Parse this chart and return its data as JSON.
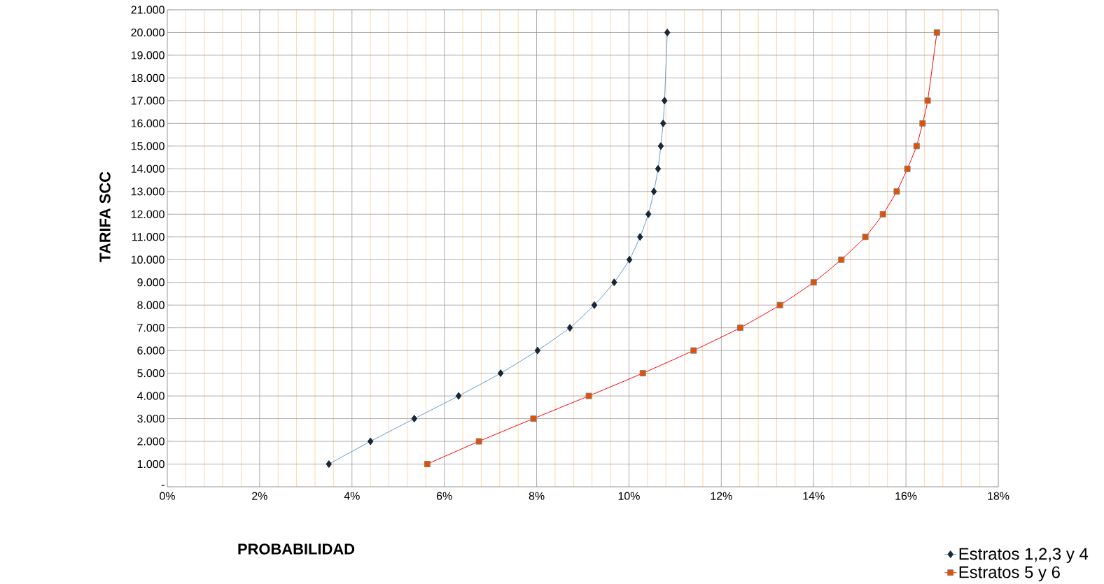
{
  "chart_data": {
    "type": "line",
    "xlabel": "PROBABILIDAD",
    "ylabel": "TARIFA  SCC",
    "xlim": [
      0,
      18
    ],
    "ylim": [
      0,
      21000
    ],
    "xticks": [
      {
        "value": 0,
        "label": "0%"
      },
      {
        "value": 0.4,
        "label": null
      },
      {
        "value": 0.8,
        "label": null
      },
      {
        "value": 1.2,
        "label": null
      },
      {
        "value": 1.6,
        "label": null
      },
      {
        "value": 2,
        "label": "2%"
      },
      {
        "value": 2.4,
        "label": null
      },
      {
        "value": 2.8,
        "label": null
      },
      {
        "value": 3.2,
        "label": null
      },
      {
        "value": 3.6,
        "label": null
      },
      {
        "value": 4,
        "label": "4%"
      },
      {
        "value": 4.4,
        "label": null
      },
      {
        "value": 4.8,
        "label": null
      },
      {
        "value": 5.2,
        "label": null
      },
      {
        "value": 5.6,
        "label": null
      },
      {
        "value": 6,
        "label": "6%"
      },
      {
        "value": 6.4,
        "label": null
      },
      {
        "value": 6.8,
        "label": null
      },
      {
        "value": 7.2,
        "label": null
      },
      {
        "value": 7.6,
        "label": null
      },
      {
        "value": 8,
        "label": "8%"
      },
      {
        "value": 8.4,
        "label": null
      },
      {
        "value": 8.8,
        "label": null
      },
      {
        "value": 9.2,
        "label": null
      },
      {
        "value": 9.6,
        "label": null
      },
      {
        "value": 10,
        "label": "10%"
      },
      {
        "value": 10.4,
        "label": null
      },
      {
        "value": 10.8,
        "label": null
      },
      {
        "value": 11.2,
        "label": null
      },
      {
        "value": 11.6,
        "label": null
      },
      {
        "value": 12,
        "label": "12%"
      },
      {
        "value": 12.4,
        "label": null
      },
      {
        "value": 12.8,
        "label": null
      },
      {
        "value": 13.2,
        "label": null
      },
      {
        "value": 13.6,
        "label": null
      },
      {
        "value": 14,
        "label": "14%"
      },
      {
        "value": 14.4,
        "label": null
      },
      {
        "value": 14.8,
        "label": null
      },
      {
        "value": 15.2,
        "label": null
      },
      {
        "value": 15.6,
        "label": null
      },
      {
        "value": 16,
        "label": "16%"
      },
      {
        "value": 16.4,
        "label": null
      },
      {
        "value": 16.8,
        "label": null
      },
      {
        "value": 17.2,
        "label": null
      },
      {
        "value": 17.6,
        "label": null
      },
      {
        "value": 18,
        "label": "18%"
      }
    ],
    "yticks": [
      {
        "value": 0,
        "label": "-"
      },
      {
        "value": 1000,
        "label": "1.000"
      },
      {
        "value": 2000,
        "label": "2.000"
      },
      {
        "value": 3000,
        "label": "3.000"
      },
      {
        "value": 4000,
        "label": "4.000"
      },
      {
        "value": 5000,
        "label": "5.000"
      },
      {
        "value": 6000,
        "label": "6.000"
      },
      {
        "value": 7000,
        "label": "7.000"
      },
      {
        "value": 8000,
        "label": "8.000"
      },
      {
        "value": 9000,
        "label": "9.000"
      },
      {
        "value": 10000,
        "label": "10.000"
      },
      {
        "value": 11000,
        "label": "11.000"
      },
      {
        "value": 12000,
        "label": "12.000"
      },
      {
        "value": 13000,
        "label": "13.000"
      },
      {
        "value": 14000,
        "label": "14.000"
      },
      {
        "value": 15000,
        "label": "15.000"
      },
      {
        "value": 16000,
        "label": "16.000"
      },
      {
        "value": 17000,
        "label": "17.000"
      },
      {
        "value": 18000,
        "label": "18.000"
      },
      {
        "value": 19000,
        "label": "19.000"
      },
      {
        "value": 20000,
        "label": "20.000"
      },
      {
        "value": 21000,
        "label": "21.000"
      }
    ],
    "grid": true,
    "legend": "bottom right",
    "line_style": "solid",
    "series": [
      {
        "name": "Estratos 1,2,3 y 4",
        "color": "#5b9bd5",
        "marker": "diamond",
        "x": [
          3.5,
          4.4,
          5.35,
          6.31,
          7.22,
          8.02,
          8.72,
          9.25,
          9.68,
          10.01,
          10.24,
          10.42,
          10.54,
          10.63,
          10.69,
          10.74,
          10.77,
          10.83
        ],
        "values": [
          1000,
          2000,
          3000,
          4000,
          5000,
          6000,
          7000,
          8000,
          9000,
          10000,
          11000,
          12000,
          13000,
          14000,
          15000,
          16000,
          17000,
          20000
        ]
      },
      {
        "name": "Estratos 5 y 6",
        "color": "#ff0000",
        "marker": "square",
        "x": [
          5.63,
          6.75,
          7.93,
          9.13,
          10.3,
          11.4,
          12.41,
          13.27,
          14.0,
          14.6,
          15.12,
          15.5,
          15.8,
          16.03,
          16.23,
          16.36,
          16.47,
          16.67
        ],
        "values": [
          1000,
          2000,
          3000,
          4000,
          5000,
          6000,
          7000,
          8000,
          9000,
          10000,
          11000,
          12000,
          13000,
          14000,
          15000,
          16000,
          17000,
          20000
        ]
      }
    ]
  }
}
